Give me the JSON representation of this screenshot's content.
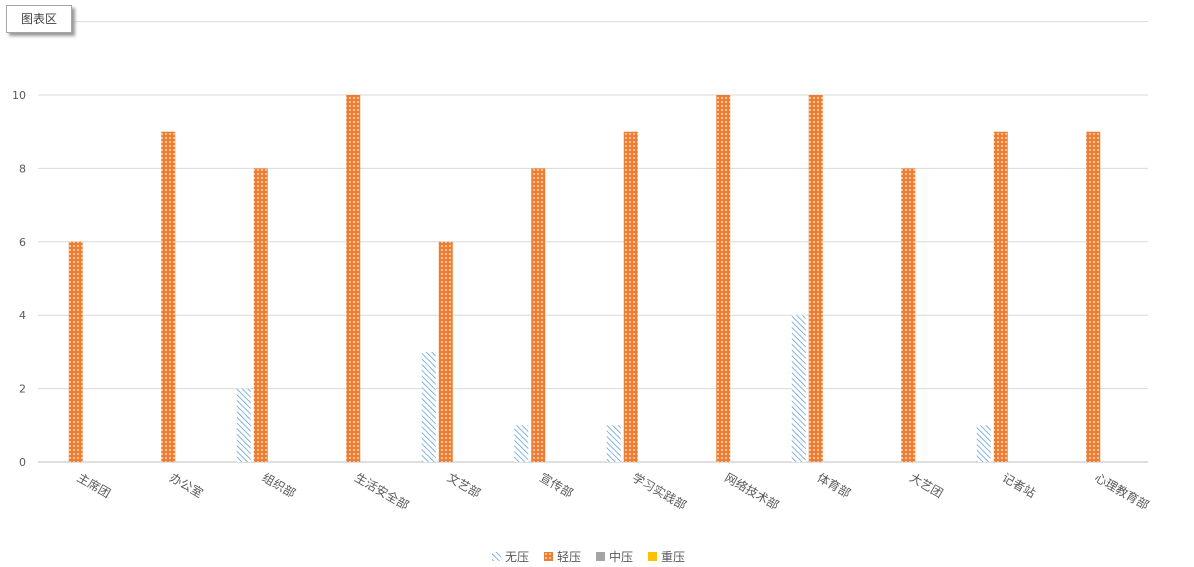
{
  "chart_area_label": "图表区",
  "chart_data": {
    "type": "bar",
    "title": "",
    "xlabel": "",
    "ylabel": "",
    "ylim": [
      0,
      12
    ],
    "yticks": [
      0,
      2,
      4,
      6,
      8,
      10
    ],
    "grid": true,
    "legend_position": "bottom",
    "categories": [
      "主席团",
      "办公室",
      "组织部",
      "生活安全部",
      "文艺部",
      "宣传部",
      "学习实践部",
      "网络技术部",
      "体育部",
      "大艺团",
      "记者站",
      "心理教育部"
    ],
    "series": [
      {
        "name": "无压",
        "color": "#5b9bd5",
        "pattern": "diagonal-stripes",
        "values": [
          0,
          0,
          2,
          0,
          3,
          1,
          1,
          0,
          4,
          0,
          1,
          0
        ]
      },
      {
        "name": "轻压",
        "color": "#ed7d31",
        "pattern": "cross-hatch",
        "values": [
          6,
          9,
          8,
          10,
          6,
          8,
          9,
          10,
          10,
          8,
          9,
          9
        ]
      },
      {
        "name": "中压",
        "color": "#a5a5a5",
        "pattern": "solid",
        "values": [
          0,
          0,
          0,
          0,
          0,
          0,
          0,
          0,
          0,
          0,
          0,
          0
        ]
      },
      {
        "name": "重压",
        "color": "#ffc000",
        "pattern": "solid",
        "values": [
          0,
          0,
          0,
          0,
          0,
          0,
          0,
          0,
          0,
          0,
          0,
          0
        ]
      }
    ]
  }
}
